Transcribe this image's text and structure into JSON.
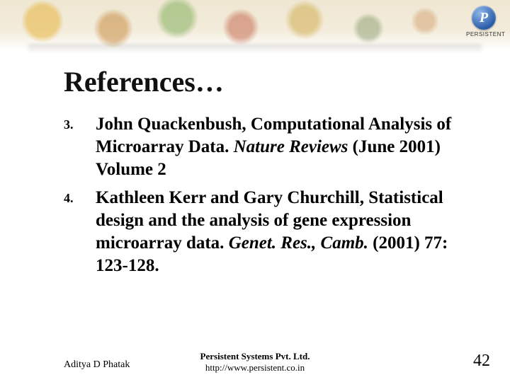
{
  "logo": {
    "glyph": "P",
    "brand": "PERSISTENT"
  },
  "title": "References…",
  "references": [
    {
      "num": "3.",
      "plain1": "John Quackenbush, Computational Analysis of Microarray Data. ",
      "italic": "Nature Reviews",
      "plain2": " (June 2001) Volume 2"
    },
    {
      "num": "4.",
      "plain1": "Kathleen Kerr and Gary Churchill, Statistical design and the analysis of gene expression microarray data. ",
      "italic": "Genet. Res., Camb.",
      "plain2": " (2001) 77: 123-128."
    }
  ],
  "footer": {
    "author": "Aditya D Phatak",
    "org": "Persistent Systems Pvt. Ltd.",
    "url": "http://www.persistent.co.in",
    "page": "42"
  }
}
